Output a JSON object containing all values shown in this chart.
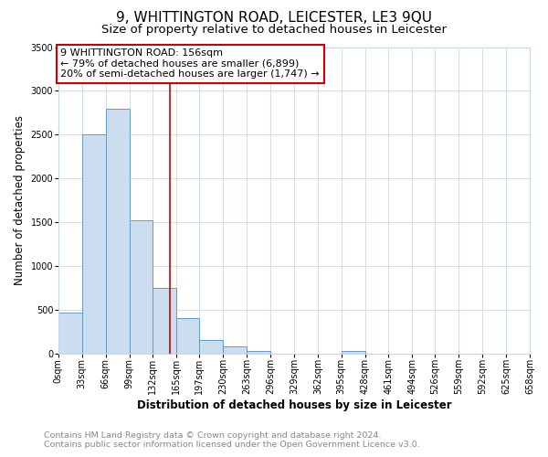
{
  "title": "9, WHITTINGTON ROAD, LEICESTER, LE3 9QU",
  "subtitle": "Size of property relative to detached houses in Leicester",
  "xlabel": "Distribution of detached houses by size in Leicester",
  "ylabel": "Number of detached properties",
  "bin_edges": [
    0,
    33,
    66,
    99,
    132,
    165,
    197,
    230,
    263,
    296,
    329,
    362,
    395,
    428,
    461,
    494,
    526,
    559,
    592,
    625,
    658
  ],
  "bar_heights": [
    470,
    2500,
    2800,
    1520,
    750,
    400,
    150,
    80,
    30,
    0,
    0,
    0,
    30,
    0,
    0,
    0,
    0,
    0,
    0,
    0
  ],
  "bar_color": "#ccddf0",
  "bar_edge_color": "#6699cc",
  "vline_x": 156,
  "vline_color": "#cc0000",
  "annotation_text": "9 WHITTINGTON ROAD: 156sqm\n← 79% of detached houses are smaller (6,899)\n20% of semi-detached houses are larger (1,747) →",
  "annotation_box_color": "#ffffff",
  "annotation_box_edge": "#cc0000",
  "ylim": [
    0,
    3500
  ],
  "yticks": [
    0,
    500,
    1000,
    1500,
    2000,
    2500,
    3000,
    3500
  ],
  "xtick_labels": [
    "0sqm",
    "33sqm",
    "66sqm",
    "99sqm",
    "132sqm",
    "165sqm",
    "197sqm",
    "230sqm",
    "263sqm",
    "296sqm",
    "329sqm",
    "362sqm",
    "395sqm",
    "428sqm",
    "461sqm",
    "494sqm",
    "526sqm",
    "559sqm",
    "592sqm",
    "625sqm",
    "658sqm"
  ],
  "footer_line1": "Contains HM Land Registry data © Crown copyright and database right 2024.",
  "footer_line2": "Contains public sector information licensed under the Open Government Licence v3.0.",
  "background_color": "#ffffff",
  "grid_color": "#c8d8e8",
  "title_fontsize": 11,
  "subtitle_fontsize": 9.5,
  "axis_label_fontsize": 8.5,
  "tick_fontsize": 7,
  "annotation_fontsize": 8,
  "footer_fontsize": 6.8
}
